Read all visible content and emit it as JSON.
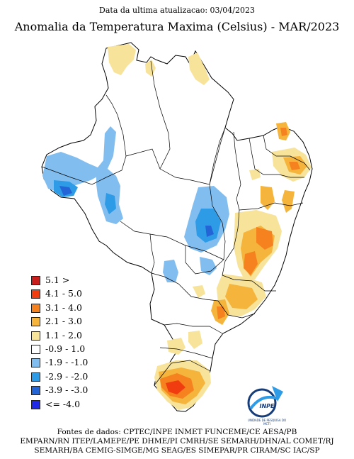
{
  "header": {
    "update_text": "Data da ultima atualizacao: 03/04/2023",
    "title": "Anomalia da Temperatura Maxima (Celsius) - MAR/2023"
  },
  "legend": {
    "items": [
      {
        "label": "5.1 >",
        "color": "#c81e1e"
      },
      {
        "label": "4.1 - 5.0",
        "color": "#f03c0f"
      },
      {
        "label": "3.1 - 4.0",
        "color": "#f5821e"
      },
      {
        "label": "2.1 - 3.0",
        "color": "#f5b43c"
      },
      {
        "label": "1.1 - 2.0",
        "color": "#f8e39b"
      },
      {
        "label": "-0.9 - 1.0",
        "color": "#ffffff"
      },
      {
        "label": "-1.9 - -1.0",
        "color": "#82bdf0"
      },
      {
        "label": "-2.9 - -2.0",
        "color": "#2d9be6"
      },
      {
        "label": "-3.9 - -3.0",
        "color": "#2364d7"
      },
      {
        "label": "<= -4.0",
        "color": "#1e28e6"
      }
    ]
  },
  "logo": {
    "name": "INPE",
    "caption": "UNIDADE DE PESQUISA DO MCTI"
  },
  "sources": {
    "line1": "Fontes de dados: CPTEC/INPE INMET FUNCEME/CE AESA/PB",
    "line2": "EMPARN/RN ITEP/LAMEPE/PE DHME/PI CMRH/SE SEMARH/DHN/AL COMET/RJ",
    "line3": "SEMARH/BA CEMIG-SIMGE/MG SEAG/ES SIMEPAR/PR CIRAM/SC IAC/SP"
  }
}
